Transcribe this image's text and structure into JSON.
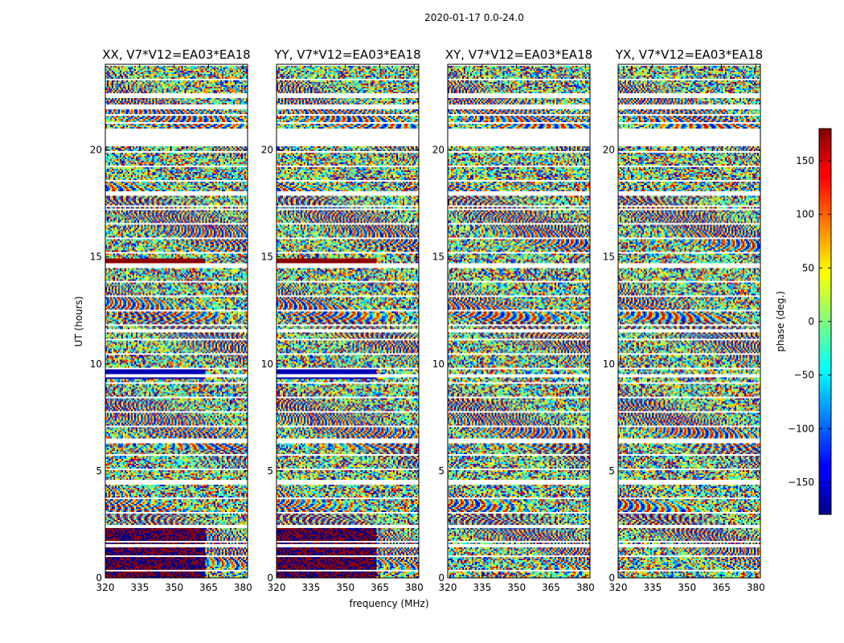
{
  "chart_data": {
    "type": "heatmap",
    "suptitle": "2020-01-17 0.0-24.0",
    "xlabel": "frequency (MHz)",
    "ylabel": "UT (hours)",
    "xlim": [
      320,
      382
    ],
    "ylim": [
      0,
      24
    ],
    "xticks": [
      320,
      335,
      350,
      365,
      380
    ],
    "yticks": [
      0,
      5,
      10,
      15,
      20
    ],
    "panels": [
      {
        "title": "XX, V7*V12=EA03*EA18",
        "kind": "parallel"
      },
      {
        "title": "YY, V7*V12=EA03*EA18",
        "kind": "parallel"
      },
      {
        "title": "XY, V7*V12=EA03*EA18",
        "kind": "cross"
      },
      {
        "title": "YX, V7*V12=EA03*EA18",
        "kind": "cross"
      }
    ],
    "colorbar": {
      "label": "phase (deg.)",
      "range": [
        -180,
        180
      ],
      "ticks": [
        150,
        100,
        50,
        0,
        -50,
        -100,
        -150
      ],
      "tick_labels": [
        "150",
        "100",
        "50",
        "0",
        "−50",
        "−100",
        "−150"
      ],
      "colormap": "jet"
    },
    "data_gaps_ut": [
      [
        22.45,
        22.6
      ],
      [
        22.0,
        22.1
      ],
      [
        21.6,
        21.7
      ],
      [
        21.0,
        20.2
      ],
      [
        18.1,
        17.95
      ],
      [
        17.4,
        17.3
      ],
      [
        14.7,
        14.55
      ],
      [
        11.6,
        11.45
      ],
      [
        9.5,
        9.4
      ],
      [
        6.5,
        6.3
      ],
      [
        4.6,
        4.45
      ],
      [
        2.5,
        2.35
      ],
      [
        1.6,
        1.45
      ]
    ]
  }
}
